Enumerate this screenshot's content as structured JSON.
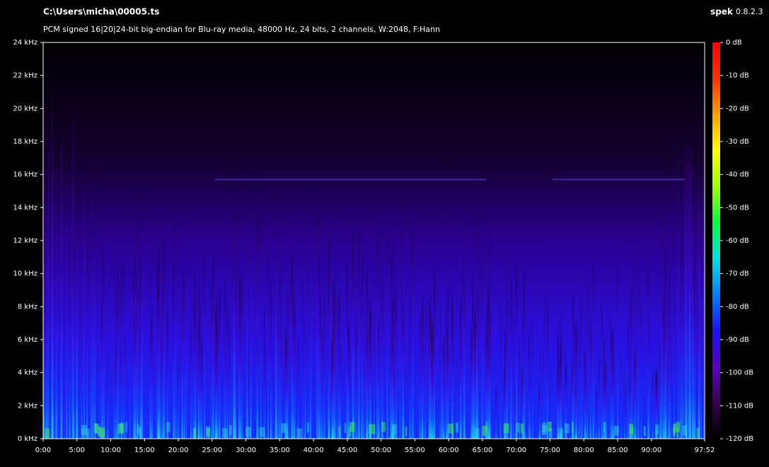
{
  "chart_data": {
    "type": "spectrogram",
    "title": "C:\\Users\\micha\\00005.ts",
    "subtitle": "PCM signed 16|20|24-bit big-endian for Blu-ray media, 48000 Hz, 24 bits, 2 channels, W:2048, F:Hann",
    "app_name": "spek",
    "app_version": "0.8.2.3",
    "xlim": [
      0,
      5872
    ],
    "xticks": [
      {
        "value": 0,
        "label": "0:00"
      },
      {
        "value": 300,
        "label": "5:00"
      },
      {
        "value": 600,
        "label": "10:00"
      },
      {
        "value": 900,
        "label": "15:00"
      },
      {
        "value": 1200,
        "label": "20:00"
      },
      {
        "value": 1500,
        "label": "25:00"
      },
      {
        "value": 1800,
        "label": "30:00"
      },
      {
        "value": 2100,
        "label": "35:00"
      },
      {
        "value": 2400,
        "label": "40:00"
      },
      {
        "value": 2700,
        "label": "45:00"
      },
      {
        "value": 3000,
        "label": "50:00"
      },
      {
        "value": 3300,
        "label": "55:00"
      },
      {
        "value": 3600,
        "label": "60:00"
      },
      {
        "value": 3900,
        "label": "65:00"
      },
      {
        "value": 4200,
        "label": "70:00"
      },
      {
        "value": 4500,
        "label": "75:00"
      },
      {
        "value": 4800,
        "label": "80:00"
      },
      {
        "value": 5100,
        "label": "85:00"
      },
      {
        "value": 5400,
        "label": "90:00"
      },
      {
        "value": 5872,
        "label": "97:52"
      }
    ],
    "ylim": [
      0,
      24
    ],
    "yticks": [
      {
        "value": 0,
        "label": "0 kHz"
      },
      {
        "value": 2,
        "label": "2 kHz"
      },
      {
        "value": 4,
        "label": "4 kHz"
      },
      {
        "value": 6,
        "label": "6 kHz"
      },
      {
        "value": 8,
        "label": "8 kHz"
      },
      {
        "value": 10,
        "label": "10 kHz"
      },
      {
        "value": 12,
        "label": "12 kHz"
      },
      {
        "value": 14,
        "label": "14 kHz"
      },
      {
        "value": 16,
        "label": "16 kHz"
      },
      {
        "value": 18,
        "label": "18 kHz"
      },
      {
        "value": 20,
        "label": "20 kHz"
      },
      {
        "value": 22,
        "label": "22 kHz"
      },
      {
        "value": 24,
        "label": "24 kHz"
      }
    ],
    "zlim": [
      -120,
      0
    ],
    "zticks": [
      {
        "value": 0,
        "label": "0 dB"
      },
      {
        "value": -10,
        "label": "-10 dB"
      },
      {
        "value": -20,
        "label": "-20 dB"
      },
      {
        "value": -30,
        "label": "-30 dB"
      },
      {
        "value": -40,
        "label": "-40 dB"
      },
      {
        "value": -50,
        "label": "-50 dB"
      },
      {
        "value": -60,
        "label": "-60 dB"
      },
      {
        "value": -70,
        "label": "-70 dB"
      },
      {
        "value": -80,
        "label": "-80 dB"
      },
      {
        "value": -90,
        "label": "-90 dB"
      },
      {
        "value": -100,
        "label": "-100 dB"
      },
      {
        "value": -110,
        "label": "-110 dB"
      },
      {
        "value": -120,
        "label": "-120 dB"
      }
    ],
    "colormap": [
      "#000000",
      "#3a0050",
      "#5a00c0",
      "#1a10ff",
      "#0080ff",
      "#00e0e0",
      "#00ff40",
      "#a0ff00",
      "#ffff00",
      "#ffa000",
      "#ff3000",
      "#ff0000"
    ]
  }
}
